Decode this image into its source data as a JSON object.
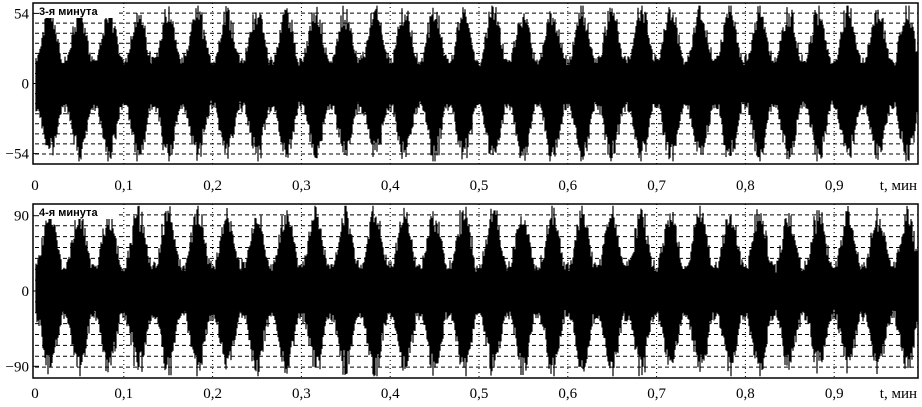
{
  "chart_data": [
    {
      "type": "line",
      "title": "3-я минута",
      "xlabel": "t, мин",
      "ylabel": "",
      "xlim": [
        0,
        1.0
      ],
      "ylim": [
        -62,
        62
      ],
      "x_ticks": [
        "0",
        "0,1",
        "0,2",
        "0,3",
        "0,4",
        "0,5",
        "0,6",
        "0,7",
        "0,8",
        "0,9"
      ],
      "x_tick_values": [
        0,
        0.1,
        0.2,
        0.3,
        0.4,
        0.5,
        0.6,
        0.7,
        0.8,
        0.9
      ],
      "y_ticks": [
        "54",
        "0",
        "−54"
      ],
      "y_tick_values": [
        54,
        0,
        -54
      ],
      "grid": true,
      "series_color": "#000000",
      "burst_period_min": 0.0333,
      "peak_amplitude": 54
    },
    {
      "type": "line",
      "title": "4-я минута",
      "xlabel": "t, мин",
      "ylabel": "",
      "xlim": [
        0,
        1.0
      ],
      "ylim": [
        -104,
        104
      ],
      "x_ticks": [
        "0",
        "0,1",
        "0,2",
        "0,3",
        "0,4",
        "0,5",
        "0,6",
        "0,7",
        "0,8",
        "0,9"
      ],
      "x_tick_values": [
        0,
        0.1,
        0.2,
        0.3,
        0.4,
        0.5,
        0.6,
        0.7,
        0.8,
        0.9
      ],
      "y_ticks": [
        "90",
        "0",
        "−90"
      ],
      "y_tick_values": [
        90,
        0,
        -90
      ],
      "grid": true,
      "series_color": "#000000",
      "burst_period_min": 0.0333,
      "peak_amplitude": 90
    }
  ]
}
